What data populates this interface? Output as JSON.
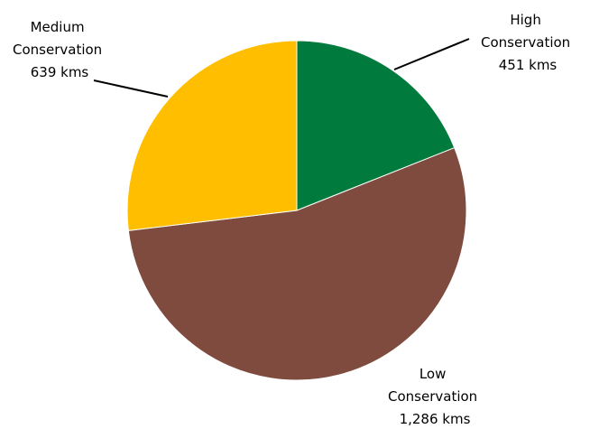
{
  "chart_data": {
    "type": "pie",
    "start_angle_deg": 0,
    "direction": "clockwise",
    "categories": [
      "High Conservation",
      "Low Conservation",
      "Medium Conservation"
    ],
    "values": [
      451,
      1286,
      639
    ],
    "unit": "kms",
    "colors": [
      "#007a3d",
      "#7f4b3e",
      "#ffbf00"
    ],
    "data_labels": [
      {
        "lines": [
          "High",
          "Conservation",
          "451 kms"
        ]
      },
      {
        "lines": [
          "Low",
          "Conservation",
          "1,286 kms"
        ]
      },
      {
        "lines": [
          "Medium",
          "Conservation",
          "639 kms"
        ]
      }
    ],
    "legend": "none"
  }
}
